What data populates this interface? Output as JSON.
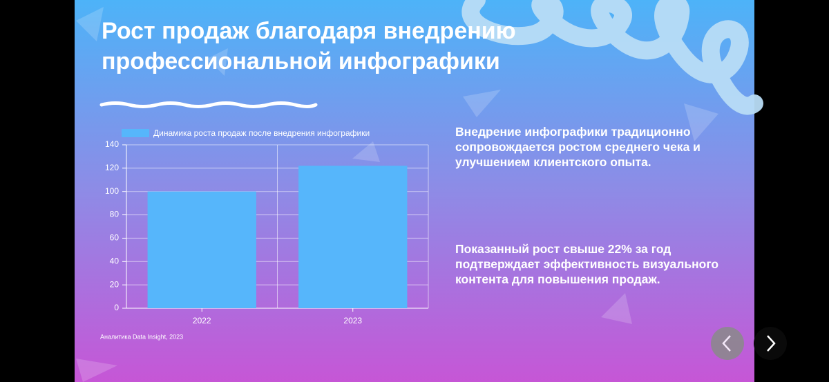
{
  "slide": {
    "title": [
      "Рост продаж благодаря внедрению",
      "профессиональной инфографики"
    ],
    "paragraphs": [
      "Внедрение инфографики традиционно сопровождается ростом среднего чека и улучшением клиентского опыта.",
      "Показанный рост свыше 22% за год подтверждает эффективность визуального контента для повышения продаж."
    ],
    "source": "Аналитика Data Insight, 2023"
  },
  "chart_data": {
    "type": "bar",
    "categories": [
      "2022",
      "2023"
    ],
    "series": [
      {
        "name": "Динамика роста продаж после внедрения инфографики",
        "color": "#56b6fb",
        "values": [
          100,
          122
        ]
      }
    ],
    "ylim": [
      0,
      140
    ],
    "yticks": [
      0,
      20,
      40,
      60,
      80,
      100,
      120,
      140
    ],
    "grid": true,
    "legend": "top"
  }
}
